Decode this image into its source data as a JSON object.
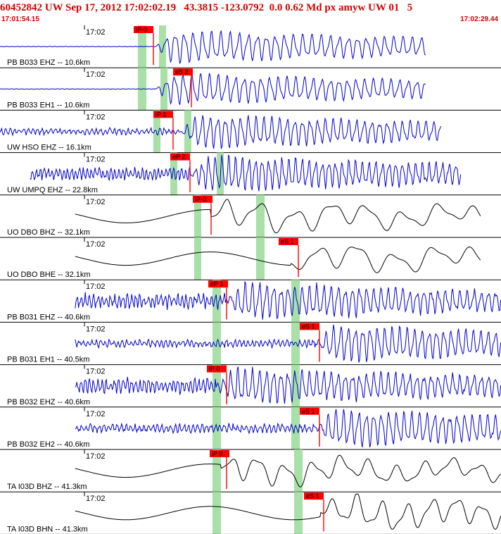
{
  "header": {
    "event_line": "60452842 UW Sep 17, 2012 17:02:02.19   43.3815 -123.0792  0.0 0.62 Md px amyw UW 01   5",
    "start_time": "17:01:54.15",
    "end_time": "17:02:29.44"
  },
  "colors": {
    "header_text": "#d40000",
    "waveform_velocity": "#0000cc",
    "waveform_broadband": "#000000",
    "pick_marker": "#ff0000",
    "window_band": "#a8e0a8",
    "divider": "#000000"
  },
  "traces": [
    {
      "tick": "17:02",
      "label": "PB B033 EHZ -- 10.6km",
      "pick": "iP-0",
      "color": "blue",
      "noise": 0.01,
      "start": 0.0,
      "end": 0.85,
      "onset": 0.31,
      "amp": 0.72,
      "freq": 55
    },
    {
      "tick": "17:02",
      "label": "PB B033 EH1 -- 10.6km",
      "pick": "eS 2",
      "color": "blue",
      "noise": 0.01,
      "start": 0.0,
      "end": 0.85,
      "onset": 0.31,
      "amp": 0.7,
      "freq": 58
    },
    {
      "tick": "17:02",
      "label": "UW HSO EHZ -- 16.1km",
      "pick": "iP 1",
      "color": "blue",
      "noise": 0.12,
      "start": 0.0,
      "end": 0.88,
      "onset": 0.36,
      "amp": 0.75,
      "freq": 65
    },
    {
      "tick": "17:02",
      "label": "UW UMPQ EHZ -- 22.8km",
      "pick": "eP 2",
      "color": "blue",
      "noise": 0.22,
      "start": 0.06,
      "end": 0.92,
      "onset": 0.38,
      "amp": 0.8,
      "freq": 75
    },
    {
      "tick": "17:02",
      "label": "UO DBO BHZ -- 32.1km",
      "pick": "iP-0",
      "color": "black",
      "noise": 0.0,
      "start": 0.15,
      "end": 0.96,
      "onset": 0.42,
      "amp": 0.65,
      "freq": 14
    },
    {
      "tick": "17:02",
      "label": "UO DBO BHE -- 32.1km",
      "pick": "eS 1",
      "color": "black",
      "noise": 0.0,
      "start": 0.15,
      "end": 0.96,
      "onset": 0.58,
      "amp": 0.6,
      "freq": 13
    },
    {
      "tick": "17:02",
      "label": "PB B031 EHZ -- 40.6km",
      "pick": "eP 1",
      "color": "blue",
      "noise": 0.28,
      "start": 0.15,
      "end": 1.0,
      "onset": 0.45,
      "amp": 0.8,
      "freq": 70
    },
    {
      "tick": "17:02",
      "label": "PB B031 EH1 -- 40.5km",
      "pick": "eS 1",
      "color": "blue",
      "noise": 0.14,
      "start": 0.15,
      "end": 1.0,
      "onset": 0.63,
      "amp": 0.82,
      "freq": 68
    },
    {
      "tick": "17:02",
      "label": "PB B032 EHZ -- 40.6km",
      "pick": "iP 0",
      "color": "blue",
      "noise": 0.28,
      "start": 0.15,
      "end": 1.0,
      "onset": 0.43,
      "amp": 0.8,
      "freq": 70
    },
    {
      "tick": "17:02",
      "label": "PB B032 EH2 -- 40.6km",
      "pick": "eS 1",
      "color": "blue",
      "noise": 0.16,
      "start": 0.15,
      "end": 1.0,
      "onset": 0.63,
      "amp": 0.85,
      "freq": 66
    },
    {
      "tick": "17:02",
      "label": "TA I03D BHZ -- 41.3km",
      "pick": "iP 0",
      "color": "black",
      "noise": 0.0,
      "start": 0.15,
      "end": 1.0,
      "onset": 0.44,
      "amp": 0.6,
      "freq": 18
    },
    {
      "tick": "17:02",
      "label": "TA I03D BHN -- 41.3km",
      "pick": "eS 1",
      "color": "black",
      "noise": 0.0,
      "start": 0.15,
      "end": 1.0,
      "onset": 0.64,
      "amp": 0.7,
      "freq": 20
    }
  ]
}
